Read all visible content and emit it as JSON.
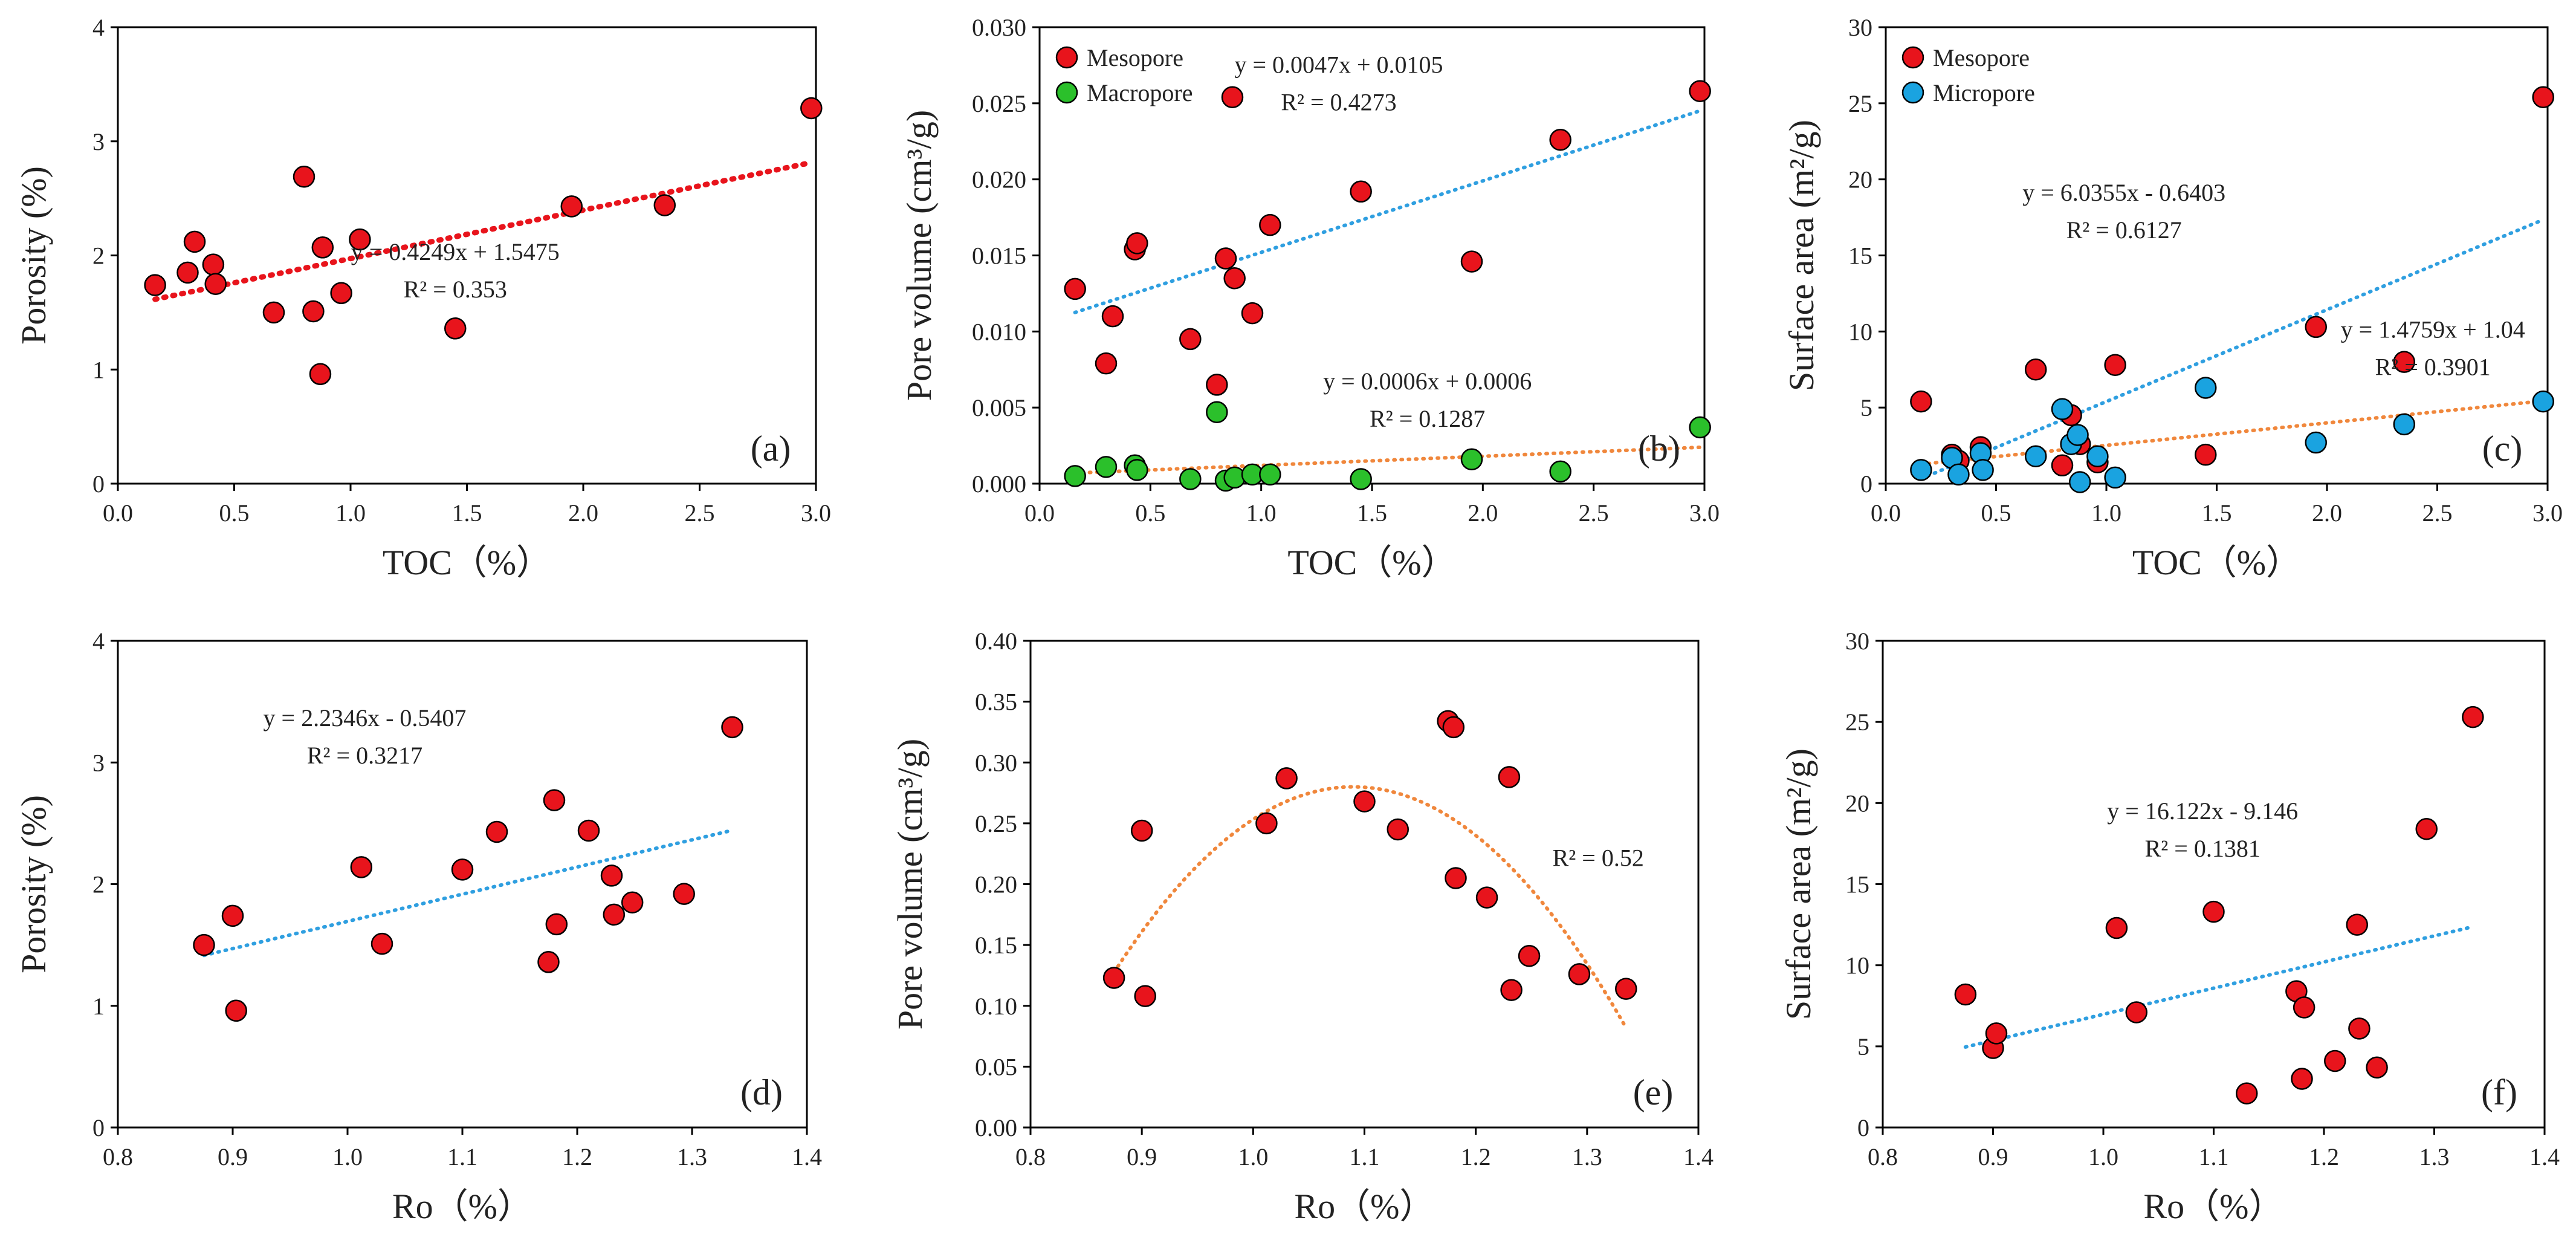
{
  "colors": {
    "mesopore": "#e8141c",
    "macropore": "#2bc02b",
    "micropore": "#1aa3e0",
    "trend_red": "#e8141c",
    "trend_blue": "#2f9fe0",
    "trend_orange": "#f0873c",
    "axis": "#000000"
  },
  "chart_data": [
    {
      "id": "a",
      "type": "scatter",
      "panel_label": "(a)",
      "xlabel": "TOC（%）",
      "ylabel": "Porosity (%)",
      "xlim": [
        0,
        3
      ],
      "ylim": [
        0,
        4
      ],
      "xticks": [
        0,
        0.5,
        1,
        1.5,
        2,
        2.5,
        3
      ],
      "yticks": [
        0,
        1,
        2,
        3,
        4
      ],
      "xdecimals": 1,
      "ydecimals": 0,
      "series": [
        {
          "name": "Porosity",
          "color_key": "mesopore",
          "points": [
            [
              0.16,
              1.74
            ],
            [
              0.3,
              1.85
            ],
            [
              0.33,
              2.12
            ],
            [
              0.41,
              1.92
            ],
            [
              0.42,
              1.75
            ],
            [
              0.67,
              1.5
            ],
            [
              0.8,
              2.69
            ],
            [
              0.84,
              1.51
            ],
            [
              0.87,
              0.96
            ],
            [
              0.88,
              2.07
            ],
            [
              0.96,
              1.67
            ],
            [
              1.04,
              2.14
            ],
            [
              1.45,
              1.36
            ],
            [
              1.95,
              2.43
            ],
            [
              2.35,
              2.44
            ],
            [
              2.98,
              3.29
            ]
          ]
        }
      ],
      "trendlines": [
        {
          "kind": "linear",
          "slope": 0.4249,
          "intercept": 1.5475,
          "x_range": [
            0.16,
            2.98
          ],
          "color_key": "trend_red",
          "style": "dotted-heavy"
        }
      ],
      "equations": [
        {
          "lines": [
            "y = 0.4249x + 1.5475",
            "R² = 0.353"
          ],
          "at": [
            1.45,
            1.96
          ]
        }
      ]
    },
    {
      "id": "b",
      "type": "scatter",
      "panel_label": "(b)",
      "xlabel": "TOC（%）",
      "ylabel": "Pore volume (cm³/g)",
      "xlim": [
        0,
        3
      ],
      "ylim": [
        0,
        0.03
      ],
      "xticks": [
        0,
        0.5,
        1,
        1.5,
        2,
        2.5,
        3
      ],
      "yticks": [
        0,
        0.005,
        0.01,
        0.015,
        0.02,
        0.025,
        0.03
      ],
      "xdecimals": 1,
      "ydecimals": 3,
      "legend": [
        {
          "label": "Mesopore",
          "color_key": "mesopore"
        },
        {
          "label": "Macropore",
          "color_key": "macropore"
        }
      ],
      "series": [
        {
          "name": "Mesopore",
          "color_key": "mesopore",
          "points": [
            [
              0.16,
              0.0128
            ],
            [
              0.3,
              0.0079
            ],
            [
              0.33,
              0.011
            ],
            [
              0.43,
              0.0154
            ],
            [
              0.44,
              0.0158
            ],
            [
              0.68,
              0.0095
            ],
            [
              0.8,
              0.0065
            ],
            [
              0.84,
              0.0148
            ],
            [
              0.87,
              0.0254
            ],
            [
              0.88,
              0.0135
            ],
            [
              0.96,
              0.0112
            ],
            [
              1.04,
              0.017
            ],
            [
              1.45,
              0.0192
            ],
            [
              1.95,
              0.0146
            ],
            [
              2.35,
              0.0226
            ],
            [
              2.98,
              0.0258
            ]
          ]
        },
        {
          "name": "Macropore",
          "color_key": "macropore",
          "points": [
            [
              0.16,
              0.0005
            ],
            [
              0.3,
              0.0011
            ],
            [
              0.43,
              0.0012
            ],
            [
              0.44,
              0.0009
            ],
            [
              0.68,
              0.0003
            ],
            [
              0.8,
              0.0047
            ],
            [
              0.84,
              0.0002
            ],
            [
              0.88,
              0.0004
            ],
            [
              0.96,
              0.0006
            ],
            [
              1.04,
              0.0006
            ],
            [
              1.45,
              0.0003
            ],
            [
              1.95,
              0.0016
            ],
            [
              2.35,
              0.0008
            ],
            [
              2.98,
              0.0037
            ]
          ]
        }
      ],
      "trendlines": [
        {
          "kind": "linear",
          "slope": 0.0047,
          "intercept": 0.0105,
          "x_range": [
            0.16,
            2.98
          ],
          "color_key": "trend_blue",
          "style": "dotted"
        },
        {
          "kind": "linear",
          "slope": 0.0006,
          "intercept": 0.0006,
          "x_range": [
            0.16,
            2.98
          ],
          "color_key": "trend_orange",
          "style": "dotted"
        }
      ],
      "equations": [
        {
          "lines": [
            "y = 0.0047x + 0.0105",
            "R² = 0.4273"
          ],
          "at": [
            1.35,
            0.027
          ]
        },
        {
          "lines": [
            "y = 0.0006x + 0.0006",
            "R² = 0.1287"
          ],
          "at": [
            1.75,
            0.0062
          ]
        }
      ]
    },
    {
      "id": "c",
      "type": "scatter",
      "panel_label": "(c)",
      "xlabel": "TOC（%）",
      "ylabel": "Surface area (m²/g)",
      "xlim": [
        0,
        3
      ],
      "ylim": [
        0,
        30
      ],
      "xticks": [
        0,
        0.5,
        1,
        1.5,
        2,
        2.5,
        3
      ],
      "yticks": [
        0,
        5,
        10,
        15,
        20,
        25,
        30
      ],
      "xdecimals": 1,
      "ydecimals": 0,
      "legend": [
        {
          "label": "Mesopore",
          "color_key": "mesopore"
        },
        {
          "label": "Micropore",
          "color_key": "micropore"
        }
      ],
      "series": [
        {
          "name": "Mesopore",
          "color_key": "mesopore",
          "points": [
            [
              0.16,
              5.4
            ],
            [
              0.3,
              1.9
            ],
            [
              0.33,
              1.5
            ],
            [
              0.43,
              2.4
            ],
            [
              0.68,
              7.5
            ],
            [
              0.8,
              1.2
            ],
            [
              0.84,
              4.5
            ],
            [
              0.88,
              2.6
            ],
            [
              0.96,
              1.4
            ],
            [
              1.04,
              7.8
            ],
            [
              1.45,
              1.9
            ],
            [
              1.95,
              10.3
            ],
            [
              2.35,
              8.0
            ],
            [
              2.98,
              25.4
            ]
          ]
        },
        {
          "name": "Micropore",
          "color_key": "micropore",
          "points": [
            [
              0.16,
              0.9
            ],
            [
              0.3,
              1.7
            ],
            [
              0.33,
              0.6
            ],
            [
              0.43,
              2.0
            ],
            [
              0.44,
              0.9
            ],
            [
              0.68,
              1.8
            ],
            [
              0.8,
              4.9
            ],
            [
              0.84,
              2.6
            ],
            [
              0.87,
              3.2
            ],
            [
              0.88,
              0.1
            ],
            [
              0.96,
              1.8
            ],
            [
              1.04,
              0.4
            ],
            [
              1.45,
              6.3
            ],
            [
              1.95,
              2.7
            ],
            [
              2.35,
              3.9
            ],
            [
              2.98,
              5.4
            ]
          ]
        }
      ],
      "trendlines": [
        {
          "kind": "linear",
          "slope": 6.0355,
          "intercept": -0.6403,
          "x_range": [
            0.16,
            2.98
          ],
          "color_key": "trend_blue",
          "style": "dotted"
        },
        {
          "kind": "linear",
          "slope": 1.4759,
          "intercept": 1.04,
          "x_range": [
            0.16,
            2.98
          ],
          "color_key": "trend_orange",
          "style": "dotted"
        }
      ],
      "equations": [
        {
          "lines": [
            "y = 6.0355x - 0.6403",
            "R² = 0.6127"
          ],
          "at": [
            1.08,
            18.6
          ]
        },
        {
          "lines": [
            "y = 1.4759x + 1.04",
            "R² = 0.3901"
          ],
          "at": [
            2.48,
            9.6
          ]
        }
      ]
    },
    {
      "id": "d",
      "type": "scatter",
      "panel_label": "(d)",
      "xlabel": "Ro（%）",
      "ylabel": "Porosity (%)",
      "xlim": [
        0.8,
        1.4
      ],
      "ylim": [
        0,
        4
      ],
      "xticks": [
        0.8,
        0.9,
        1.0,
        1.1,
        1.2,
        1.3,
        1.4
      ],
      "yticks": [
        0,
        1,
        2,
        3,
        4
      ],
      "xdecimals": 1,
      "ydecimals": 0,
      "series": [
        {
          "name": "Porosity",
          "color_key": "mesopore",
          "points": [
            [
              0.875,
              1.5
            ],
            [
              0.9,
              1.74
            ],
            [
              0.903,
              0.96
            ],
            [
              1.012,
              2.14
            ],
            [
              1.03,
              1.51
            ],
            [
              1.1,
              2.12
            ],
            [
              1.13,
              2.43
            ],
            [
              1.175,
              1.36
            ],
            [
              1.18,
              2.69
            ],
            [
              1.182,
              1.67
            ],
            [
              1.21,
              2.44
            ],
            [
              1.23,
              2.07
            ],
            [
              1.232,
              1.75
            ],
            [
              1.248,
              1.85
            ],
            [
              1.293,
              1.92
            ],
            [
              1.335,
              3.29
            ]
          ]
        }
      ],
      "trendlines": [
        {
          "kind": "linear",
          "slope": 2.2346,
          "intercept": -0.5407,
          "x_range": [
            0.875,
            1.335
          ],
          "color_key": "trend_blue",
          "style": "dotted"
        }
      ],
      "equations": [
        {
          "lines": [
            "y = 2.2346x - 0.5407",
            "R² = 0.3217"
          ],
          "at": [
            1.015,
            3.3
          ]
        }
      ]
    },
    {
      "id": "e",
      "type": "scatter",
      "panel_label": "(e)",
      "xlabel": "Ro（%）",
      "ylabel": "Pore volume (cm³/g)",
      "xlim": [
        0.8,
        1.4
      ],
      "ylim": [
        0,
        0.4
      ],
      "xticks": [
        0.8,
        0.9,
        1.0,
        1.1,
        1.2,
        1.3,
        1.4
      ],
      "yticks": [
        0,
        0.05,
        0.1,
        0.15,
        0.2,
        0.25,
        0.3,
        0.35,
        0.4
      ],
      "xdecimals": 1,
      "ydecimals": 2,
      "series": [
        {
          "name": "Pore volume",
          "color_key": "mesopore",
          "points": [
            [
              0.875,
              0.123
            ],
            [
              0.9,
              0.244
            ],
            [
              0.903,
              0.108
            ],
            [
              1.012,
              0.25
            ],
            [
              1.03,
              0.287
            ],
            [
              1.1,
              0.268
            ],
            [
              1.13,
              0.245
            ],
            [
              1.175,
              0.334
            ],
            [
              1.18,
              0.329
            ],
            [
              1.182,
              0.205
            ],
            [
              1.21,
              0.189
            ],
            [
              1.23,
              0.288
            ],
            [
              1.232,
              0.113
            ],
            [
              1.248,
              0.141
            ],
            [
              1.293,
              0.126
            ],
            [
              1.335,
              0.114
            ]
          ]
        }
      ],
      "trendlines": [
        {
          "kind": "quadratic",
          "vertex": [
            1.09,
            0.28
          ],
          "a": -3.3,
          "x_range": [
            0.875,
            1.335
          ],
          "color_key": "trend_orange",
          "style": "dotted"
        }
      ],
      "equations": [
        {
          "lines": [
            "R² = 0.52"
          ],
          "at": [
            1.31,
            0.215
          ]
        }
      ]
    },
    {
      "id": "f",
      "type": "scatter",
      "panel_label": "(f)",
      "xlabel": "Ro（%）",
      "ylabel": "Surface area (m²/g)",
      "xlim": [
        0.8,
        1.4
      ],
      "ylim": [
        0,
        30
      ],
      "xticks": [
        0.8,
        0.9,
        1.0,
        1.1,
        1.2,
        1.3,
        1.4
      ],
      "yticks": [
        0,
        5,
        10,
        15,
        20,
        25,
        30
      ],
      "xdecimals": 1,
      "ydecimals": 0,
      "series": [
        {
          "name": "Surface area",
          "color_key": "mesopore",
          "points": [
            [
              0.875,
              8.2
            ],
            [
              0.9,
              4.9
            ],
            [
              0.903,
              5.8
            ],
            [
              1.012,
              12.3
            ],
            [
              1.03,
              7.1
            ],
            [
              1.1,
              13.3
            ],
            [
              1.13,
              2.1
            ],
            [
              1.175,
              8.4
            ],
            [
              1.18,
              3.0
            ],
            [
              1.182,
              7.4
            ],
            [
              1.21,
              4.1
            ],
            [
              1.23,
              12.5
            ],
            [
              1.232,
              6.1
            ],
            [
              1.248,
              3.7
            ],
            [
              1.293,
              18.4
            ],
            [
              1.335,
              25.3
            ]
          ]
        }
      ],
      "trendlines": [
        {
          "kind": "linear",
          "slope": 16.122,
          "intercept": -9.146,
          "x_range": [
            0.875,
            1.335
          ],
          "color_key": "trend_blue",
          "style": "dotted"
        }
      ],
      "equations": [
        {
          "lines": [
            "y = 16.122x - 9.146",
            "R² = 0.1381"
          ],
          "at": [
            1.09,
            19.0
          ]
        }
      ]
    }
  ]
}
